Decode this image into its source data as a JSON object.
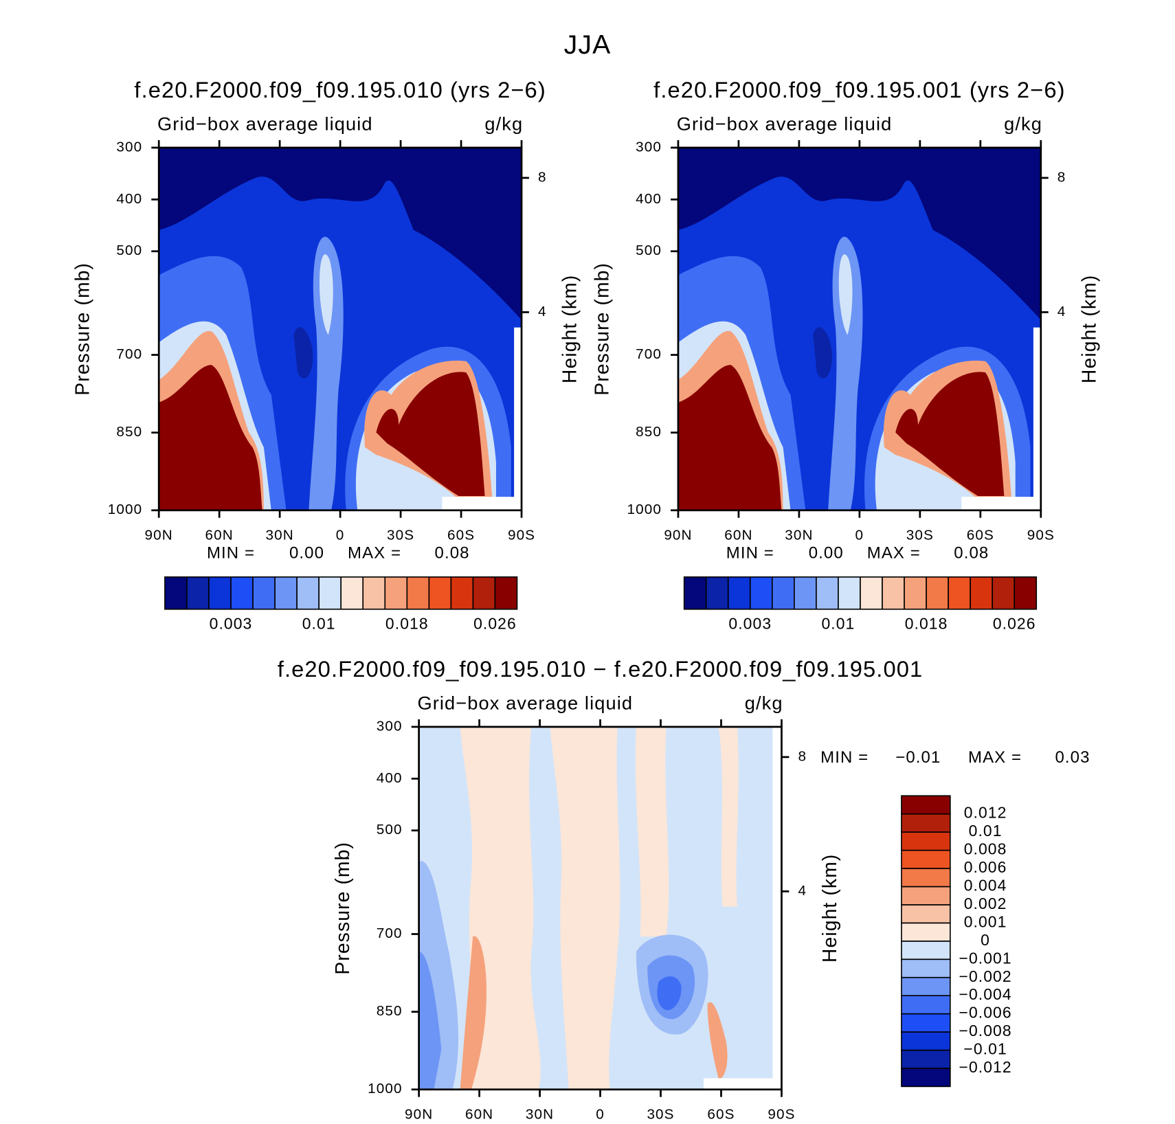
{
  "title": "JJA",
  "chart_data": [
    {
      "type": "contour",
      "title": "f.e20.F2000.f09_f09.195.010 (yrs 2−6)",
      "subtitle": "Grid−box average liquid",
      "units": "g/kg",
      "ylabel": "Pressure (mb)",
      "y2label": "Height (km)",
      "xlim": [
        90,
        -90
      ],
      "xticks": [
        {
          "value": 90,
          "label": "90N"
        },
        {
          "value": 60,
          "label": "60N"
        },
        {
          "value": 30,
          "label": "30N"
        },
        0,
        {
          "value": -30,
          "label": "30S"
        },
        {
          "value": -60,
          "label": "60S"
        },
        {
          "value": -90,
          "label": "90S"
        }
      ],
      "ylim": [
        1000,
        300
      ],
      "yticks": [
        300,
        400,
        500,
        700,
        850,
        1000
      ],
      "y2lim": [
        -1.9,
        8.9
      ],
      "y2ticks": [
        4,
        8
      ],
      "min_label": "MIN =",
      "min": {
        "value": 0,
        "label": "0.00"
      },
      "max_label": "MAX =",
      "max": 0.08,
      "colorbar": {
        "orientation": "horizontal",
        "colors": [
          "#03077b",
          "#0a23a8",
          "#0b35d9",
          "#1e4ef5",
          "#3f6ef5",
          "#6d95f5",
          "#9fbdf7",
          "#d2e4f9",
          "#fbe6d8",
          "#f8c2a6",
          "#f5a27c",
          "#f27948",
          "#ee5322",
          "#d8350f",
          "#b1200a",
          "#880000"
        ],
        "levels": [
          null,
          null,
          0.003,
          null,
          null,
          null,
          0.01,
          null,
          null,
          null,
          0.018,
          null,
          null,
          null,
          0.026
        ]
      }
    },
    {
      "type": "contour",
      "title": "f.e20.F2000.f09_f09.195.001 (yrs 2−6)",
      "subtitle": "Grid−box average liquid",
      "units": "g/kg",
      "ylabel": "Pressure (mb)",
      "y2label": "Height (km)",
      "xlim": [
        90,
        -90
      ],
      "xticks": [
        {
          "value": 90,
          "label": "90N"
        },
        {
          "value": 60,
          "label": "60N"
        },
        {
          "value": 30,
          "label": "30N"
        },
        0,
        {
          "value": -30,
          "label": "30S"
        },
        {
          "value": -60,
          "label": "60S"
        },
        {
          "value": -90,
          "label": "90S"
        }
      ],
      "ylim": [
        1000,
        300
      ],
      "yticks": [
        300,
        400,
        500,
        700,
        850,
        1000
      ],
      "y2lim": [
        -1.9,
        8.9
      ],
      "y2ticks": [
        4,
        8
      ],
      "min_label": "MIN =",
      "min": {
        "value": 0,
        "label": "0.00"
      },
      "max_label": "MAX =",
      "max": 0.08,
      "colorbar": {
        "orientation": "horizontal",
        "colors": [
          "#03077b",
          "#0a23a8",
          "#0b35d9",
          "#1e4ef5",
          "#3f6ef5",
          "#6d95f5",
          "#9fbdf7",
          "#d2e4f9",
          "#fbe6d8",
          "#f8c2a6",
          "#f5a27c",
          "#f27948",
          "#ee5322",
          "#d8350f",
          "#b1200a",
          "#880000"
        ],
        "levels": [
          null,
          null,
          0.003,
          null,
          null,
          null,
          0.01,
          null,
          null,
          null,
          0.018,
          null,
          null,
          null,
          0.026
        ]
      }
    },
    {
      "type": "contour",
      "title": "f.e20.F2000.f09_f09.195.010 − f.e20.F2000.f09_f09.195.001",
      "subtitle": "Grid−box average liquid",
      "units": "g/kg",
      "ylabel": "Pressure (mb)",
      "y2label": "Height (km)",
      "xlim": [
        90,
        -90
      ],
      "xticks": [
        {
          "value": 90,
          "label": "90N"
        },
        {
          "value": 60,
          "label": "60N"
        },
        {
          "value": 30,
          "label": "30N"
        },
        0,
        {
          "value": -30,
          "label": "30S"
        },
        {
          "value": -60,
          "label": "60S"
        },
        {
          "value": -90,
          "label": "90S"
        }
      ],
      "ylim": [
        1000,
        300
      ],
      "yticks": [
        300,
        400,
        500,
        700,
        850,
        1000
      ],
      "y2lim": [
        -1.9,
        8.9
      ],
      "y2ticks": [
        4,
        8
      ],
      "min_label": "MIN =",
      "min": {
        "value": -0.01,
        "label": "−0.01"
      },
      "max_label": "MAX =",
      "max": 0.03,
      "colorbar": {
        "orientation": "vertical",
        "colors": [
          "#03077b",
          "#0a23a8",
          "#0b35d9",
          "#1e4ef5",
          "#3f6ef5",
          "#6d95f5",
          "#9fbdf7",
          "#d2e4f9",
          "#fbe6d8",
          "#f8c2a6",
          "#f5a27c",
          "#f27948",
          "#ee5322",
          "#d8350f",
          "#b1200a",
          "#880000"
        ],
        "levels": [
          {
            "value": -0.012,
            "label": "−0.012"
          },
          {
            "value": -0.01,
            "label": "−0.01"
          },
          {
            "value": -0.008,
            "label": "−0.008"
          },
          {
            "value": -0.006,
            "label": "−0.006"
          },
          {
            "value": -0.004,
            "label": "−0.004"
          },
          {
            "value": -0.002,
            "label": "−0.002"
          },
          {
            "value": -0.001,
            "label": "−0.001"
          },
          0,
          0.001,
          0.002,
          0.004,
          0.006,
          0.008,
          0.01,
          0.012
        ]
      }
    }
  ]
}
